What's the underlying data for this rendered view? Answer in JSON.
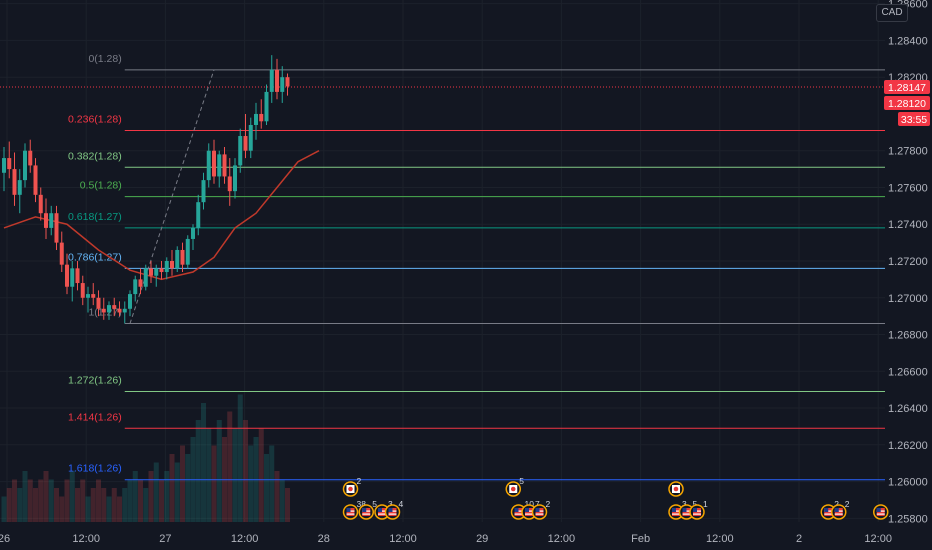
{
  "currency_label": "CAD",
  "current_price_tag": "1.28147",
  "secondary_price_tag": "1.28120",
  "countdown_tag": "33:55",
  "colors": {
    "background": "#131722",
    "grid": "#1c212b",
    "up": "#26a69a",
    "down": "#ef5350",
    "ma": "#c0392b",
    "price_tag": "#f23645",
    "axis_text": "#b2b5be"
  },
  "chart_data": {
    "type": "candlestick",
    "title": "",
    "y_axis": {
      "range": [
        1.2578,
        1.2862
      ],
      "tick_labels": [
        "1.28600",
        "1.28400",
        "1.28200",
        "1.27800",
        "1.27600",
        "1.27400",
        "1.27200",
        "1.27000",
        "1.26800",
        "1.26600",
        "1.26400",
        "1.26200",
        "1.26000",
        "1.25800"
      ],
      "tick_values": [
        1.286,
        1.284,
        1.282,
        1.278,
        1.276,
        1.274,
        1.272,
        1.27,
        1.268,
        1.266,
        1.264,
        1.262,
        1.26,
        1.258
      ]
    },
    "x_axis": {
      "tick_labels": [
        "26",
        "12:00",
        "27",
        "12:00",
        "28",
        "12:00",
        "29",
        "12:00",
        "Feb",
        "12:00",
        "2",
        "12:00"
      ],
      "tick_hours": [
        0,
        12,
        24,
        36,
        48,
        60,
        72,
        84,
        96,
        108,
        120,
        132
      ]
    },
    "fib_levels": [
      {
        "label": "0(1.28)",
        "value": 1.2824,
        "color": "#787b86"
      },
      {
        "label": "0.236(1.28)",
        "value": 1.2791,
        "color": "#f23645"
      },
      {
        "label": "0.382(1.28)",
        "value": 1.2771,
        "color": "#81c784"
      },
      {
        "label": "0.5(1.28)",
        "value": 1.2755,
        "color": "#4caf50"
      },
      {
        "label": "0.618(1.27)",
        "value": 1.2738,
        "color": "#089981"
      },
      {
        "label": "0.786(1.27)",
        "value": 1.2716,
        "color": "#64b5f6"
      },
      {
        "label": "1(1.27)",
        "value": 1.2686,
        "color": "#787b86"
      },
      {
        "label": "1.272(1.26)",
        "value": 1.2649,
        "color": "#81c784"
      },
      {
        "label": "1.414(1.26)",
        "value": 1.2629,
        "color": "#f23645"
      },
      {
        "label": "1.618(1.26)",
        "value": 1.2601,
        "color": "#2962ff"
      }
    ],
    "current_price": 1.28147,
    "candles_ohlc": [
      [
        1.2768,
        1.2782,
        1.2758,
        1.2776
      ],
      [
        1.2776,
        1.2785,
        1.2765,
        1.277
      ],
      [
        1.277,
        1.2779,
        1.275,
        1.2756
      ],
      [
        1.2756,
        1.277,
        1.2746,
        1.2764
      ],
      [
        1.2764,
        1.2784,
        1.276,
        1.278
      ],
      [
        1.278,
        1.2786,
        1.2768,
        1.2772
      ],
      [
        1.2772,
        1.2776,
        1.2752,
        1.2756
      ],
      [
        1.2756,
        1.276,
        1.2742,
        1.2746
      ],
      [
        1.2746,
        1.2754,
        1.2732,
        1.2738
      ],
      [
        1.2738,
        1.275,
        1.2734,
        1.2746
      ],
      [
        1.2746,
        1.275,
        1.2726,
        1.273
      ],
      [
        1.273,
        1.2736,
        1.2714,
        1.2718
      ],
      [
        1.2718,
        1.2724,
        1.2702,
        1.2706
      ],
      [
        1.2706,
        1.272,
        1.2698,
        1.2716
      ],
      [
        1.2716,
        1.272,
        1.2704,
        1.2708
      ],
      [
        1.2708,
        1.2712,
        1.2696,
        1.27
      ],
      [
        1.27,
        1.2706,
        1.2692,
        1.2702
      ],
      [
        1.2702,
        1.2708,
        1.2696,
        1.27
      ],
      [
        1.27,
        1.2704,
        1.269,
        1.2694
      ],
      [
        1.2694,
        1.27,
        1.2688,
        1.2692
      ],
      [
        1.2692,
        1.2698,
        1.2688,
        1.2696
      ],
      [
        1.2696,
        1.27,
        1.269,
        1.2694
      ],
      [
        1.2694,
        1.2698,
        1.269,
        1.2692
      ],
      [
        1.2692,
        1.2698,
        1.2686,
        1.2694
      ],
      [
        1.2694,
        1.2704,
        1.269,
        1.2702
      ],
      [
        1.2702,
        1.2712,
        1.2698,
        1.271
      ],
      [
        1.271,
        1.2716,
        1.2702,
        1.2706
      ],
      [
        1.2706,
        1.2718,
        1.2704,
        1.2716
      ],
      [
        1.2716,
        1.272,
        1.2708,
        1.2712
      ],
      [
        1.2712,
        1.2718,
        1.2706,
        1.2716
      ],
      [
        1.2716,
        1.272,
        1.271,
        1.2714
      ],
      [
        1.2714,
        1.2722,
        1.271,
        1.272
      ],
      [
        1.272,
        1.2726,
        1.2712,
        1.2716
      ],
      [
        1.2716,
        1.2728,
        1.2714,
        1.2726
      ],
      [
        1.2726,
        1.273,
        1.2714,
        1.2718
      ],
      [
        1.2718,
        1.2734,
        1.2716,
        1.2732
      ],
      [
        1.2732,
        1.274,
        1.2726,
        1.2738
      ],
      [
        1.2738,
        1.2756,
        1.2734,
        1.2752
      ],
      [
        1.2752,
        1.2768,
        1.2748,
        1.2764
      ],
      [
        1.2764,
        1.2784,
        1.276,
        1.278
      ],
      [
        1.278,
        1.2786,
        1.2762,
        1.2766
      ],
      [
        1.2766,
        1.278,
        1.276,
        1.2778
      ],
      [
        1.2778,
        1.2782,
        1.2762,
        1.2766
      ],
      [
        1.2766,
        1.2776,
        1.275,
        1.2758
      ],
      [
        1.2758,
        1.2776,
        1.2754,
        1.2772
      ],
      [
        1.2772,
        1.2792,
        1.2768,
        1.2788
      ],
      [
        1.2788,
        1.28,
        1.2776,
        1.278
      ],
      [
        1.278,
        1.2798,
        1.2776,
        1.2794
      ],
      [
        1.2794,
        1.2806,
        1.2786,
        1.28
      ],
      [
        1.28,
        1.2808,
        1.2792,
        1.2796
      ],
      [
        1.2796,
        1.2816,
        1.2794,
        1.2812
      ],
      [
        1.2812,
        1.2832,
        1.2806,
        1.2824
      ],
      [
        1.2824,
        1.283,
        1.2808,
        1.2812
      ],
      [
        1.2812,
        1.2826,
        1.2806,
        1.282
      ],
      [
        1.282,
        1.2822,
        1.281,
        1.2815
      ]
    ],
    "ma_line": [
      [
        0,
        1.2738
      ],
      [
        6,
        1.2744
      ],
      [
        12,
        1.274
      ],
      [
        18,
        1.2726
      ],
      [
        24,
        1.2715
      ],
      [
        30,
        1.271
      ],
      [
        36,
        1.2714
      ],
      [
        40,
        1.2722
      ],
      [
        44,
        1.2738
      ],
      [
        48,
        1.2746
      ],
      [
        52,
        1.276
      ],
      [
        56,
        1.2774
      ],
      [
        60,
        1.278
      ]
    ],
    "dashed_trend": {
      "from": [
        24,
        1.2686
      ],
      "to": [
        40,
        1.2824
      ]
    },
    "volume": [
      3,
      4,
      5,
      4,
      6,
      5,
      4,
      5,
      6,
      5,
      4,
      3,
      5,
      6,
      4,
      5,
      3,
      4,
      5,
      4,
      3,
      4,
      3,
      4,
      5,
      6,
      5,
      4,
      6,
      7,
      5,
      6,
      8,
      7,
      9,
      8,
      10,
      12,
      14,
      11,
      9,
      12,
      10,
      13,
      11,
      15,
      12,
      9,
      10,
      11,
      8,
      9,
      6,
      5,
      4
    ],
    "events": [
      {
        "label": "2",
        "icon": "flag-ca-icon"
      },
      {
        "label": "38",
        "icon": "flag-us-icon"
      },
      {
        "label": "5",
        "icon": "flag-us-icon"
      },
      {
        "label": "3",
        "icon": "flag-us-icon"
      },
      {
        "label": "4",
        "icon": "flag-us-icon"
      },
      {
        "label": "5",
        "icon": "flag-ca-icon"
      },
      {
        "label": "10",
        "icon": "flag-us-icon"
      },
      {
        "label": "7",
        "icon": "flag-us-icon"
      },
      {
        "label": "2",
        "icon": "flag-us-icon"
      },
      {
        "label": "",
        "icon": "flag-ca-icon"
      },
      {
        "label": "3",
        "icon": "flag-us-icon"
      },
      {
        "label": "5",
        "icon": "flag-us-icon"
      },
      {
        "label": "1",
        "icon": "flag-us-icon"
      },
      {
        "label": "2",
        "icon": "flag-us-icon"
      },
      {
        "label": "2",
        "icon": "flag-us-icon"
      },
      {
        "label": "",
        "icon": "flag-us-icon"
      }
    ]
  }
}
